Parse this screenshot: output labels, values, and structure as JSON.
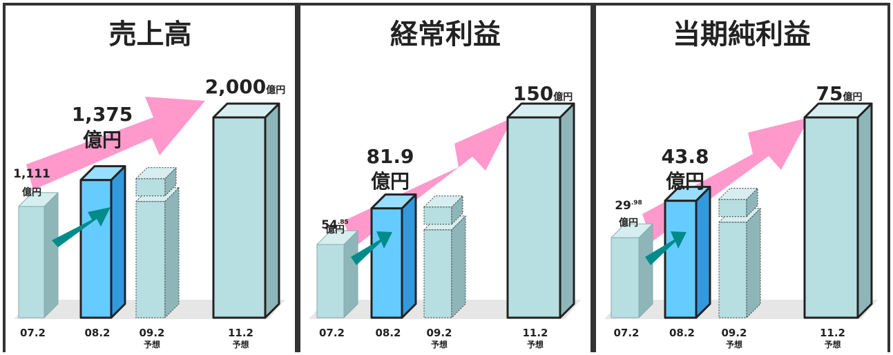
{
  "colors": {
    "border": "#333333",
    "arrow_pink": "#FF99CC",
    "arrow_teal": "#008B8B",
    "bar_face": "#B7DEE1",
    "bar_side": "#8EB6B9",
    "bar_top": "#D6EEF0",
    "bar_highlight_face": "#66CCFF",
    "bar_highlight_side": "#3399DD",
    "bar_highlight_top": "#99DDFF",
    "floor": "#E6E6E6"
  },
  "chart_data": [
    {
      "type": "bar",
      "title": "売上高",
      "categories": [
        "07.2",
        "08.2",
        "09.2",
        "11.2"
      ],
      "category_sublabels": [
        "",
        "",
        "予想",
        "予想"
      ],
      "values": [
        1111,
        1375,
        null,
        2000
      ],
      "forecast_placeholder_index": 2,
      "highlight_index": 1,
      "value_labels": [
        {
          "index": 0,
          "main": "1,111",
          "sup": "",
          "unit": "億円"
        },
        {
          "index": 1,
          "main": "1,375",
          "sup": "",
          "unit": "億円"
        },
        {
          "index": 3,
          "main": "2,000",
          "sup": "",
          "unit": "億円"
        }
      ]
    },
    {
      "type": "bar",
      "title": "経常利益",
      "categories": [
        "07.2",
        "08.2",
        "09.2",
        "11.2"
      ],
      "category_sublabels": [
        "",
        "",
        "予想",
        "予想"
      ],
      "values": [
        54.85,
        81.9,
        null,
        150
      ],
      "forecast_placeholder_index": 2,
      "highlight_index": 1,
      "value_labels": [
        {
          "index": 0,
          "main": "54",
          "sup": ".85",
          "unit": "億円"
        },
        {
          "index": 1,
          "main": "81.9",
          "sup": "",
          "unit": "億円"
        },
        {
          "index": 3,
          "main": "150",
          "sup": "",
          "unit": "億円"
        }
      ]
    },
    {
      "type": "bar",
      "title": "当期純利益",
      "categories": [
        "07.2",
        "08.2",
        "09.2",
        "11.2"
      ],
      "category_sublabels": [
        "",
        "",
        "予想",
        "予想"
      ],
      "values": [
        29.98,
        43.8,
        null,
        75
      ],
      "forecast_placeholder_index": 2,
      "highlight_index": 1,
      "value_labels": [
        {
          "index": 0,
          "main": "29",
          "sup": ".98",
          "unit": "億円"
        },
        {
          "index": 1,
          "main": "43.8",
          "sup": "",
          "unit": "億円"
        },
        {
          "index": 3,
          "main": "75",
          "sup": "",
          "unit": "億円"
        }
      ]
    }
  ]
}
